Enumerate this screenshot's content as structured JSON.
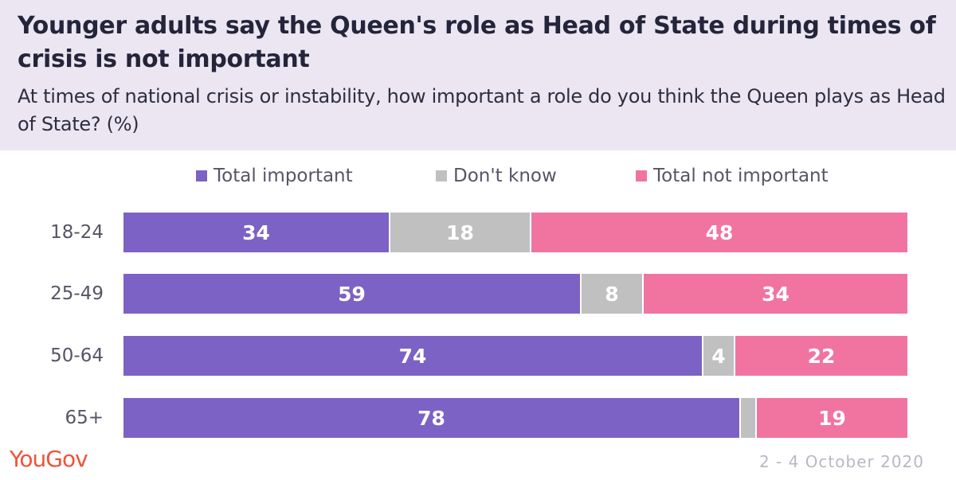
{
  "chart_data": {
    "type": "bar",
    "orientation": "horizontal-stacked",
    "title": "Younger adults say the Queen's role as Head of State during times of crisis is not important",
    "subtitle": "At times of national crisis or instability, how important a role do you think the Queen plays as Head of State? (%)",
    "categories": [
      "18-24",
      "25-49",
      "50-64",
      "65+"
    ],
    "series": [
      {
        "name": "Total important",
        "color": "#7c62c4",
        "values": [
          34,
          59,
          74,
          78
        ],
        "labels": [
          "34",
          "59",
          "74",
          "78"
        ]
      },
      {
        "name": "Don't know",
        "color": "#c0c0c0",
        "values": [
          18,
          8,
          4,
          2
        ],
        "labels": [
          "18",
          "8",
          "4",
          ""
        ]
      },
      {
        "name": "Total not important",
        "color": "#f174a0",
        "values": [
          48,
          34,
          22,
          19
        ],
        "labels": [
          "48",
          "34",
          "22",
          "19"
        ]
      }
    ],
    "xlim": [
      0,
      100
    ],
    "legend_position": "top"
  },
  "branding": {
    "logo_text": "YouGov",
    "logo_color": "#f0533a"
  },
  "footer": {
    "date": "2 - 4 October 2020"
  }
}
